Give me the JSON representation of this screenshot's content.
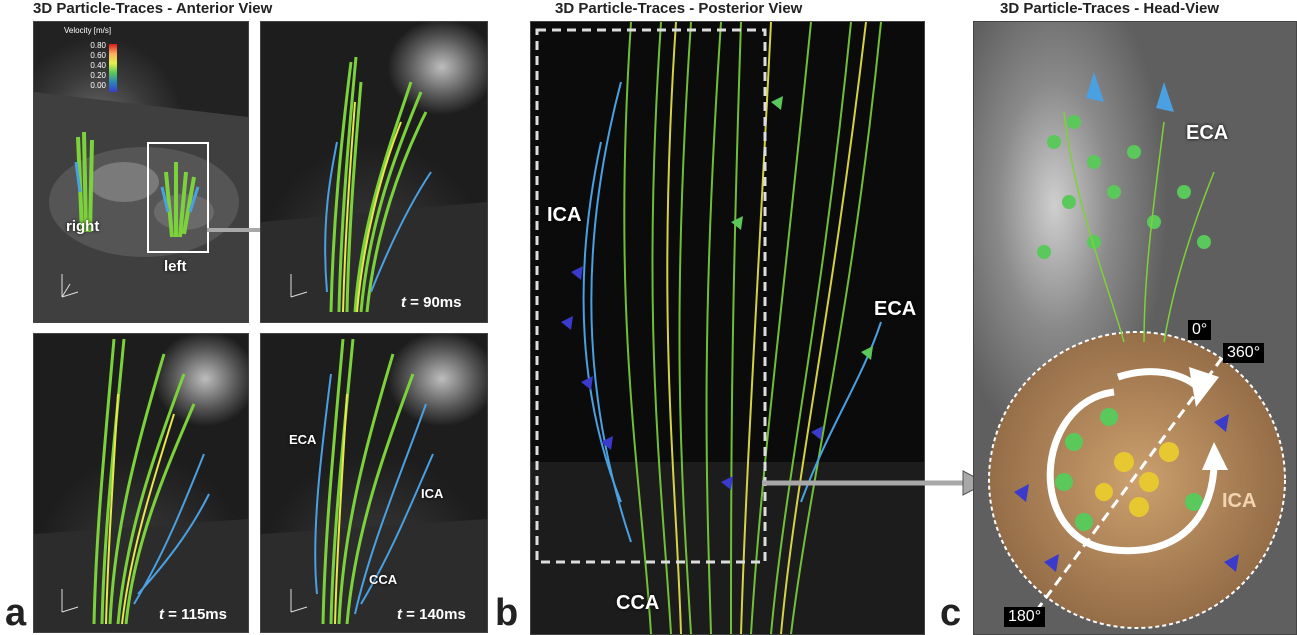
{
  "titles": {
    "anterior": "3D Particle-Traces - Anterior View",
    "posterior": "3D Particle-Traces - Posterior View",
    "head": "3D Particle-Traces - Head-View"
  },
  "panel_letters": {
    "a": "a",
    "b": "b",
    "c": "c"
  },
  "colorbar": {
    "title": "Velocity [m/s]",
    "ticks": [
      "0.80",
      "0.60",
      "0.40",
      "0.20",
      "0.00"
    ],
    "colors": [
      "#d7191c",
      "#fdae61",
      "#e6f04a",
      "#5ac85a",
      "#2b83ba",
      "#3b3bd0"
    ]
  },
  "panel_a": {
    "label_right": "right",
    "label_left": "left",
    "time_t": "t",
    "time_90": "= 90ms",
    "time_115": "= 115ms",
    "time_140": "= 140ms",
    "label_eca": "ECA",
    "label_ica": "ICA",
    "label_cca": "CCA"
  },
  "panel_b": {
    "label_ica": "ICA",
    "label_eca": "ECA",
    "label_cca": "CCA"
  },
  "panel_c": {
    "label_eca": "ECA",
    "label_ica": "ICA",
    "deg_0": "0°",
    "deg_360": "360°",
    "deg_180": "180°"
  },
  "colors": {
    "stream_green": "#7cd23a",
    "stream_yellow": "#e8e84a",
    "stream_blue": "#4aa0e0",
    "arrow_indigo": "#3a3acb",
    "arrow_grey": "#a8a8a8",
    "orange_disc": "#c9935a"
  }
}
